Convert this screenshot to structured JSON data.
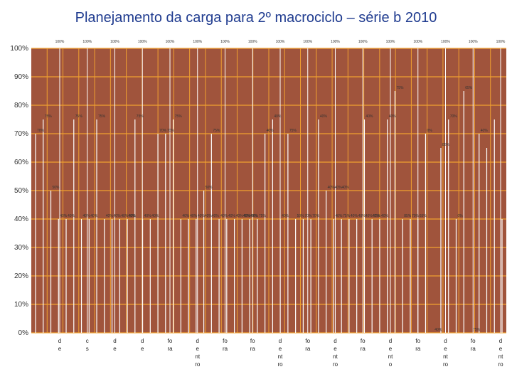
{
  "chart_data": {
    "type": "bar",
    "title": "Planejamento da carga para 2º macrociclo – série b 2010",
    "ylim": [
      0,
      100
    ],
    "yticks": [
      "0%",
      "10%",
      "20%",
      "30%",
      "40%",
      "50%",
      "60%",
      "70%",
      "80%",
      "90%",
      "100%"
    ],
    "grid": true,
    "colors": {
      "plot_bg": "#a0543c",
      "grid": "#f0a030",
      "bar": "#ffffff",
      "text": "#333333",
      "title": "#1f3b8f"
    },
    "series": [
      {
        "name": "",
        "values": [
          70,
          75,
          50,
          40,
          40,
          75,
          40,
          40,
          75,
          40,
          40,
          40,
          40,
          75,
          40,
          40,
          70,
          70,
          75,
          40,
          40,
          40,
          50,
          70,
          40,
          40,
          40,
          40,
          40,
          40,
          70,
          75,
          40,
          70,
          40,
          40,
          40,
          75,
          50,
          40,
          40,
          40,
          40,
          75,
          40,
          40,
          75,
          85,
          40,
          40,
          40,
          70,
          0,
          65,
          75,
          40,
          85,
          0,
          70,
          65,
          75,
          40
        ]
      },
      {
        "name": "",
        "values": [
          100,
          100,
          100,
          100,
          100,
          100,
          100,
          100,
          100,
          100,
          100,
          100,
          100,
          100,
          100,
          100,
          100
        ]
      }
    ],
    "series_labels": [
      [
        "70%",
        "75%",
        "50%",
        "40%",
        "40%",
        "75%",
        "40%",
        "40%",
        "75%",
        "40%",
        "40%",
        "40%40%",
        "40%",
        "75%",
        "40%",
        "40%",
        "70%",
        "70%",
        "75%",
        "40%",
        "40%",
        "40%40%40%",
        "50%",
        "75%",
        "40%",
        "40%",
        "40%40%40%",
        "40%",
        "40%",
        "75%",
        "40%",
        "40%",
        "40%",
        "75%",
        "50%",
        "70%",
        "70%",
        "40%",
        "40%40%40%",
        "40%",
        "75%",
        "40%",
        "40%40%40%",
        "40%",
        "75%",
        "40%",
        "40%",
        "75%",
        "85%",
        "70%",
        "65%",
        "0%",
        "40%",
        "85%",
        "70%",
        "0%",
        "65%",
        "75%",
        "40%"
      ],
      [
        "100%",
        "100%",
        "100%",
        "100%",
        "100%",
        "100%",
        "100%",
        "100%",
        "100%",
        "100%",
        "100%",
        "100%",
        "100%",
        "100%",
        "100%",
        "100%",
        "100%"
      ]
    ],
    "x_labels": [
      [
        "d",
        "e"
      ],
      [
        "c",
        "s"
      ],
      [
        "d",
        "e"
      ],
      [
        "d",
        "e"
      ],
      [
        "fo",
        "ra"
      ],
      [
        "d",
        "e",
        "nt",
        "ro"
      ],
      [
        "fo",
        "ra"
      ],
      [
        "fo",
        "ra"
      ],
      [
        "d",
        "e",
        "nt",
        "ro"
      ],
      [
        "fo",
        "ra"
      ],
      [
        "d",
        "e",
        "nt",
        "ro"
      ],
      [
        "fo",
        "ra"
      ],
      [
        "d",
        "e",
        "nt",
        "o"
      ],
      [
        "fo",
        "ra"
      ],
      [
        "d",
        "e",
        "nt",
        "ro"
      ],
      [
        "fo",
        "ra"
      ],
      [
        "d",
        "e",
        "nt",
        "ro"
      ]
    ]
  }
}
